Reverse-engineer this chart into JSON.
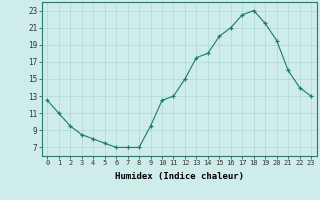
{
  "x": [
    0,
    1,
    2,
    3,
    4,
    5,
    6,
    7,
    8,
    9,
    10,
    11,
    12,
    13,
    14,
    15,
    16,
    17,
    18,
    19,
    20,
    21,
    22,
    23
  ],
  "y": [
    12.5,
    11.0,
    9.5,
    8.5,
    8.0,
    7.5,
    7.0,
    7.0,
    7.0,
    9.5,
    12.5,
    13.0,
    15.0,
    17.5,
    18.0,
    20.0,
    21.0,
    22.5,
    23.0,
    21.5,
    19.5,
    16.0,
    14.0,
    13.0
  ],
  "xlabel": "Humidex (Indice chaleur)",
  "ylim": [
    6,
    24
  ],
  "xlim": [
    -0.5,
    23.5
  ],
  "yticks": [
    7,
    9,
    11,
    13,
    15,
    17,
    19,
    21,
    23
  ],
  "xticks": [
    0,
    1,
    2,
    3,
    4,
    5,
    6,
    7,
    8,
    9,
    10,
    11,
    12,
    13,
    14,
    15,
    16,
    17,
    18,
    19,
    20,
    21,
    22,
    23
  ],
  "xtick_labels": [
    "0",
    "1",
    "2",
    "3",
    "4",
    "5",
    "6",
    "7",
    "8",
    "9",
    "10",
    "11",
    "12",
    "13",
    "14",
    "15",
    "16",
    "17",
    "18",
    "19",
    "20",
    "21",
    "22",
    "23"
  ],
  "line_color": "#1a7a6e",
  "marker": "+",
  "bg_color": "#ceecea",
  "grid_color": "#b0d8d4",
  "title": ""
}
